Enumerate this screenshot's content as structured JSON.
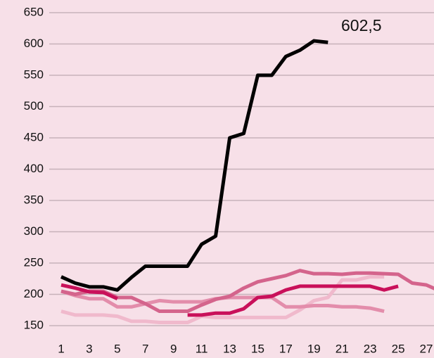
{
  "chart_data": {
    "type": "line",
    "x": [
      1,
      2,
      3,
      4,
      5,
      6,
      7,
      8,
      9,
      10,
      11,
      12,
      13,
      14,
      15,
      16,
      17,
      18,
      19,
      20,
      21,
      22,
      23,
      24,
      25,
      26,
      27,
      28
    ],
    "xlim": [
      0.15,
      27.55
    ],
    "xticks": [
      1,
      3,
      5,
      7,
      9,
      11,
      13,
      15,
      17,
      19,
      21,
      23,
      25,
      27
    ],
    "ylim": [
      150,
      650
    ],
    "yticks": [
      150,
      200,
      250,
      300,
      350,
      400,
      450,
      500,
      550,
      600,
      650
    ],
    "grid": true,
    "series": [
      {
        "color": "#f0b9cc",
        "values": [
          173,
          167,
          167,
          167,
          165,
          157,
          157,
          155,
          155,
          155,
          165,
          163,
          163,
          163,
          163,
          163,
          163,
          175,
          190,
          195,
          223,
          223,
          228,
          228,
          null,
          null,
          null,
          null
        ]
      },
      {
        "color": "#e38dab",
        "values": [
          205,
          198,
          193,
          193,
          180,
          180,
          185,
          190,
          188,
          188,
          188,
          193,
          195,
          195,
          195,
          195,
          180,
          180,
          182,
          182,
          180,
          180,
          178,
          173,
          null,
          null,
          null,
          null
        ]
      },
      {
        "color": "#d4648c",
        "values": [
          205,
          200,
          205,
          205,
          195,
          195,
          185,
          173,
          173,
          173,
          183,
          192,
          197,
          210,
          220,
          225,
          230,
          238,
          233,
          233,
          232,
          234,
          234,
          233,
          232,
          218,
          215,
          205
        ]
      },
      {
        "color": "#c9105a",
        "values": [
          215,
          210,
          204,
          203,
          193,
          null,
          null,
          null,
          null,
          167,
          167,
          170,
          170,
          177,
          195,
          197,
          207,
          213,
          213,
          213,
          213,
          213,
          213,
          207,
          213,
          null,
          null,
          null
        ]
      },
      {
        "color": "#000000",
        "values": [
          228,
          218,
          212,
          212,
          207,
          227,
          245,
          245,
          245,
          245,
          280,
          293,
          450,
          457,
          550,
          550,
          580,
          590,
          605,
          602.5,
          null,
          null,
          null,
          null,
          null,
          null,
          null,
          null
        ]
      }
    ],
    "annotations": [
      {
        "text": "602,5"
      }
    ]
  }
}
